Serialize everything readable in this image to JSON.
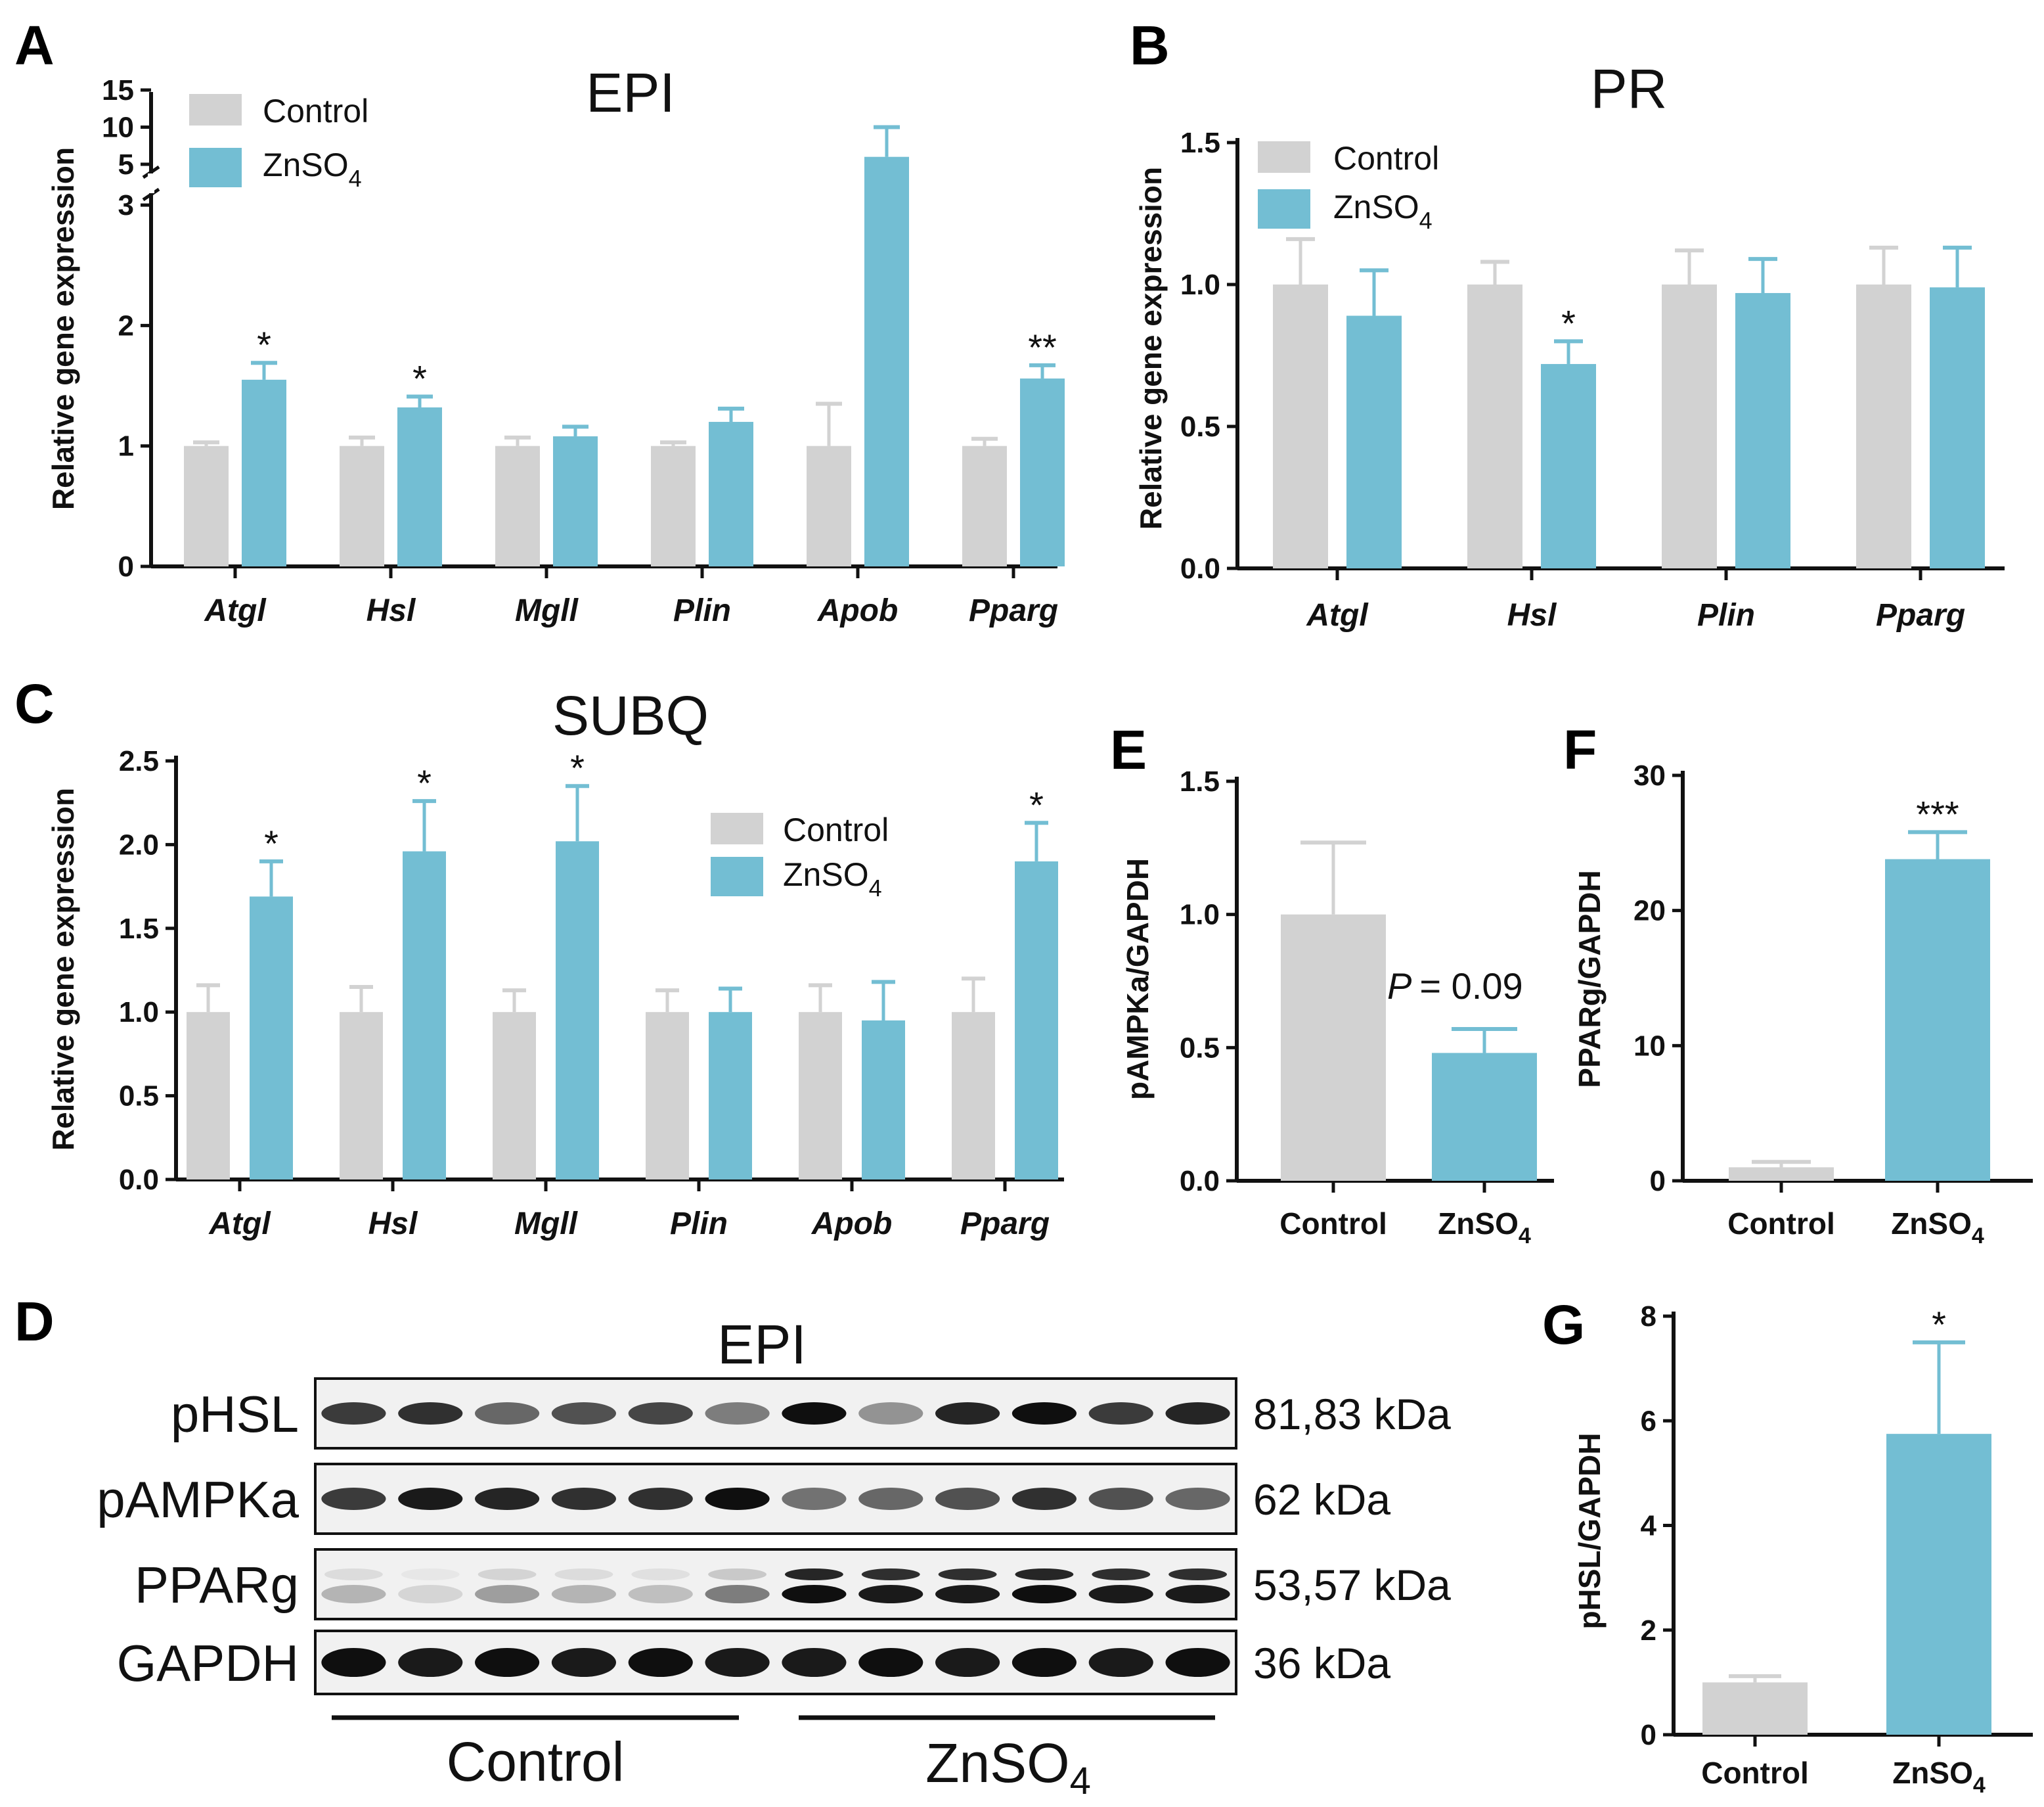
{
  "colors": {
    "control": "#d2d2d2",
    "treated": "#73bed3",
    "axis": "#111111"
  },
  "chart_data": [
    {
      "panel": "A",
      "type": "bar",
      "title": "EPI",
      "ylabel": "Relative gene expression",
      "categories": [
        "Atgl",
        "Hsl",
        "Mgll",
        "Plin",
        "Apob",
        "Pparg"
      ],
      "series": [
        {
          "name": "Control",
          "values": [
            1.0,
            1.0,
            1.0,
            1.0,
            1.0,
            1.0
          ],
          "errors": [
            0.03,
            0.07,
            0.07,
            0.03,
            0.35,
            0.06
          ]
        },
        {
          "name": "ZnSO4",
          "values": [
            1.55,
            1.32,
            1.08,
            1.2,
            6.0,
            1.56
          ],
          "errors": [
            0.14,
            0.09,
            0.08,
            0.11,
            4.0,
            0.11
          ]
        }
      ],
      "significance": [
        "*",
        "*",
        "",
        "",
        "",
        "**"
      ],
      "yticks": [
        "0",
        "1",
        "2",
        "3",
        "5",
        "10",
        "15"
      ],
      "ylim": [
        0,
        15
      ],
      "axis_break": [
        3,
        5
      ]
    },
    {
      "panel": "B",
      "type": "bar",
      "title": "PR",
      "ylabel": "Relative gene expression",
      "categories": [
        "Atgl",
        "Hsl",
        "Plin",
        "Pparg"
      ],
      "series": [
        {
          "name": "Control",
          "values": [
            1.0,
            1.0,
            1.0,
            1.0
          ],
          "errors": [
            0.16,
            0.08,
            0.12,
            0.13
          ]
        },
        {
          "name": "ZnSO4",
          "values": [
            0.89,
            0.72,
            0.97,
            0.99
          ],
          "errors": [
            0.16,
            0.08,
            0.12,
            0.14
          ]
        }
      ],
      "significance": [
        "",
        "*",
        "",
        ""
      ],
      "yticks": [
        "0.0",
        "0.5",
        "1.0",
        "1.5"
      ],
      "ylim": [
        0,
        1.5
      ]
    },
    {
      "panel": "C",
      "type": "bar",
      "title": "SUBQ",
      "ylabel": "Relative gene expression",
      "categories": [
        "Atgl",
        "Hsl",
        "Mgll",
        "Plin",
        "Apob",
        "Pparg"
      ],
      "series": [
        {
          "name": "Control",
          "values": [
            1.0,
            1.0,
            1.0,
            1.0,
            1.0,
            1.0
          ],
          "errors": [
            0.16,
            0.15,
            0.13,
            0.13,
            0.16,
            0.2
          ]
        },
        {
          "name": "ZnSO4",
          "values": [
            1.69,
            1.96,
            2.02,
            1.0,
            0.95,
            1.9
          ],
          "errors": [
            0.21,
            0.3,
            0.33,
            0.14,
            0.23,
            0.23
          ]
        }
      ],
      "significance": [
        "*",
        "*",
        "*",
        "",
        "",
        "*"
      ],
      "yticks": [
        "0.0",
        "0.5",
        "1.0",
        "1.5",
        "2.0",
        "2.5"
      ],
      "ylim": [
        0,
        2.5
      ]
    },
    {
      "panel": "E",
      "type": "bar",
      "ylabel": "pAMPKa/GAPDH",
      "categories": [
        "Control",
        "ZnSO4"
      ],
      "values": [
        1.0,
        0.48
      ],
      "errors": [
        0.27,
        0.09
      ],
      "annotation": "= 0.09",
      "annotation_p": "P",
      "yticks": [
        "0.0",
        "0.5",
        "1.0",
        "1.5"
      ],
      "ylim": [
        0,
        1.5
      ]
    },
    {
      "panel": "F",
      "type": "bar",
      "ylabel": "PPARg/GAPDH",
      "categories": [
        "Control",
        "ZnSO4"
      ],
      "values": [
        1.0,
        23.8
      ],
      "errors": [
        0.4,
        2.0
      ],
      "significance": [
        "",
        "***"
      ],
      "yticks": [
        "0",
        "10",
        "20",
        "30"
      ],
      "ylim": [
        0,
        30
      ]
    },
    {
      "panel": "G",
      "type": "bar",
      "ylabel": "pHSL/GAPDH",
      "categories": [
        "Control",
        "ZnSO4"
      ],
      "values": [
        1.0,
        5.75
      ],
      "errors": [
        0.12,
        1.75
      ],
      "significance": [
        "",
        "*"
      ],
      "yticks": [
        "0",
        "2",
        "4",
        "6",
        "8"
      ],
      "ylim": [
        0,
        8
      ]
    }
  ],
  "legend": {
    "control": "Control",
    "treated_base": "ZnSO",
    "treated_sub": "4"
  },
  "panel_d": {
    "letter": "D",
    "title": "EPI",
    "rows": [
      {
        "protein": "pHSL",
        "kda": "81,83 kDa",
        "intensities": [
          0.8,
          0.85,
          0.6,
          0.7,
          0.75,
          0.5,
          1.0,
          0.4,
          0.9,
          1.0,
          0.8,
          0.9
        ]
      },
      {
        "protein": "pAMPKa",
        "kda": "62 kDa",
        "intensities": [
          0.8,
          0.95,
          0.9,
          0.85,
          0.85,
          1.0,
          0.55,
          0.6,
          0.7,
          0.85,
          0.7,
          0.6
        ]
      },
      {
        "protein": "PPARg",
        "kda": "53,57 kDa",
        "intensities": [
          0.25,
          0.1,
          0.35,
          0.25,
          0.2,
          0.5,
          1.0,
          0.95,
          0.95,
          1.0,
          0.95,
          0.95
        ]
      },
      {
        "protein": "GAPDH",
        "kda": "36 kDa",
        "intensities": [
          1.0,
          0.95,
          1.0,
          0.95,
          1.0,
          0.95,
          0.95,
          1.0,
          0.95,
          1.0,
          0.95,
          1.0
        ]
      }
    ],
    "group_control": "Control",
    "group_treated_base": "ZnSO",
    "group_treated_sub": "4"
  }
}
